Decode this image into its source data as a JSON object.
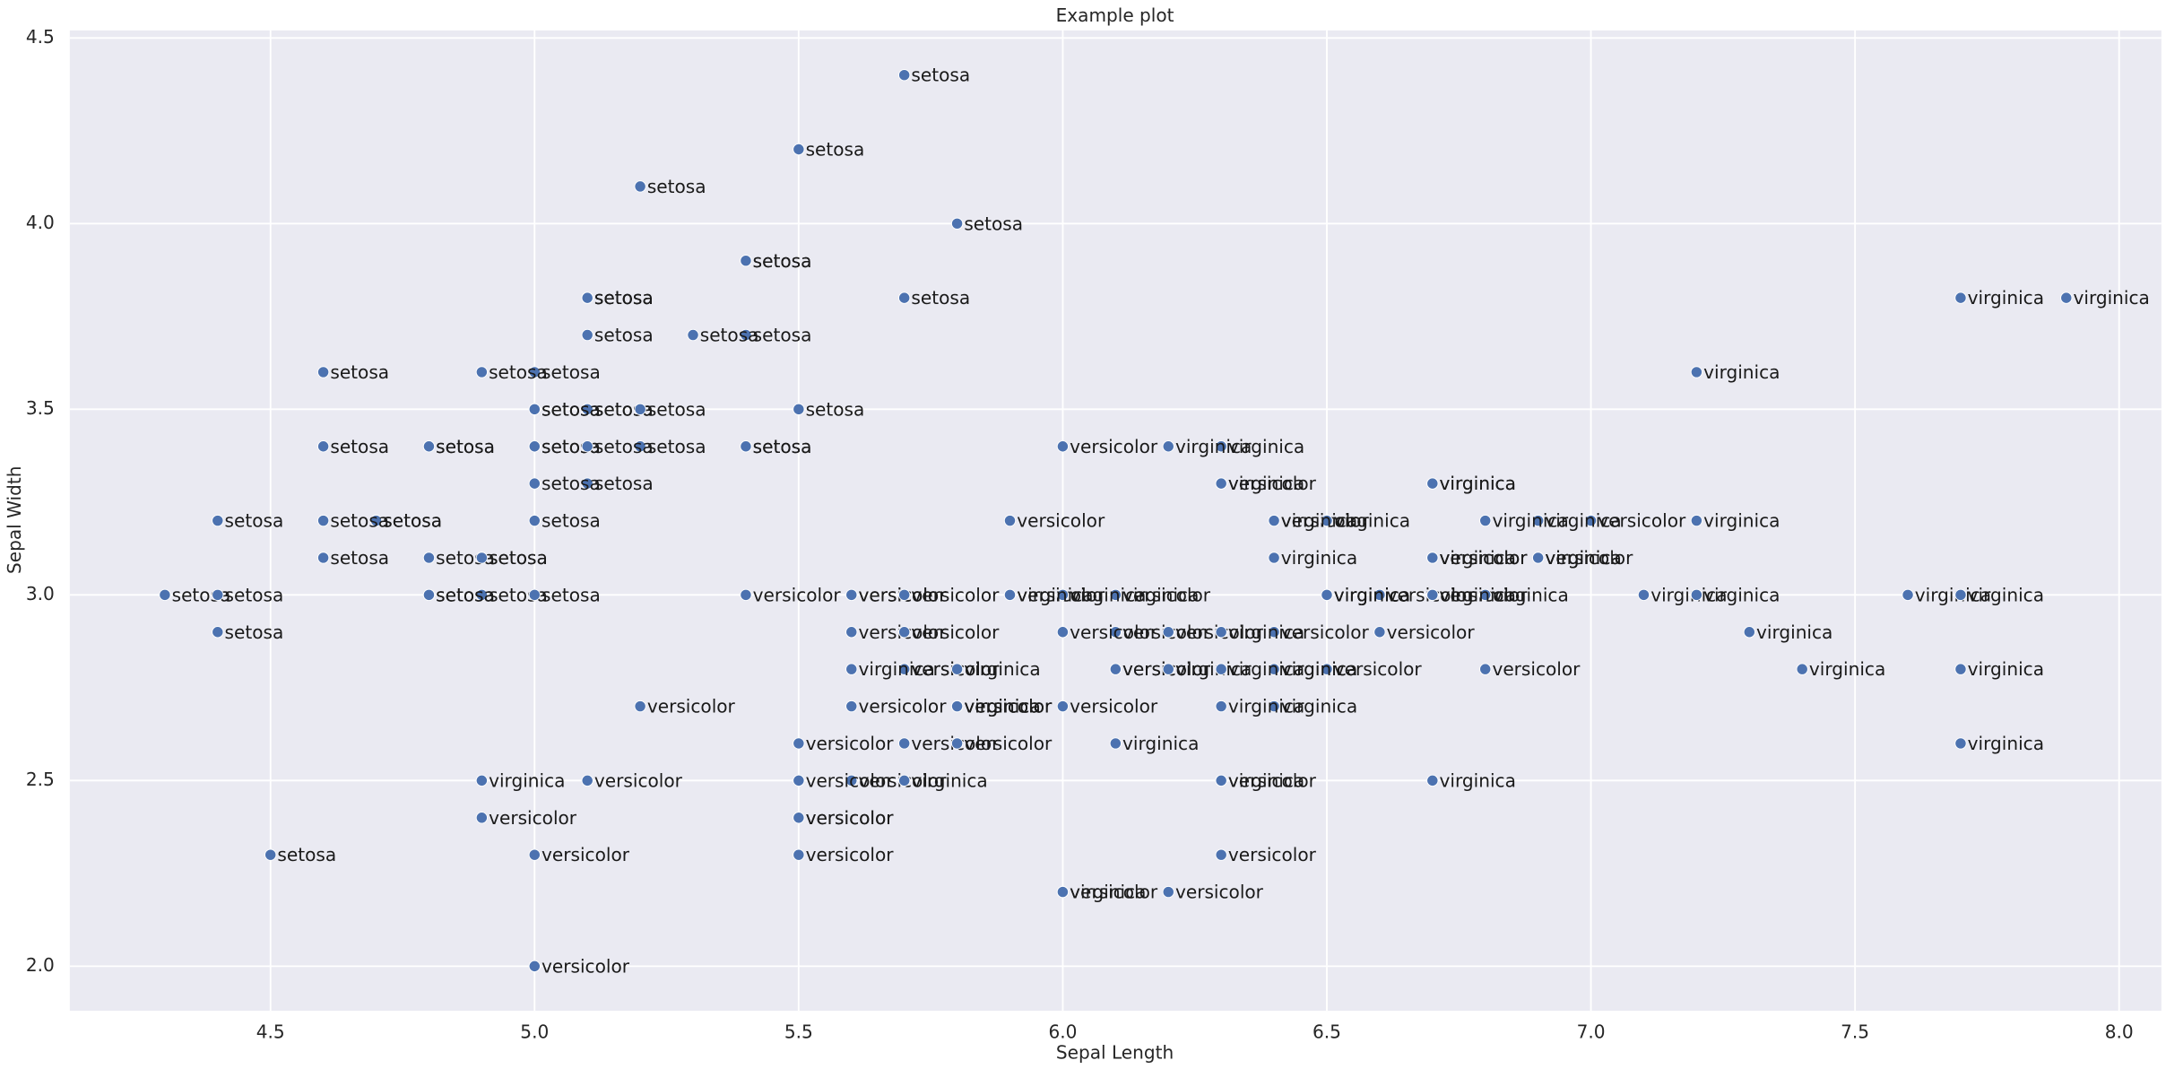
{
  "chart_data": {
    "type": "scatter",
    "title": "Example plot",
    "xlabel": "Sepal Length",
    "ylabel": "Sepal Width",
    "xlim": [
      4.12,
      8.08
    ],
    "ylim": [
      1.88,
      4.52
    ],
    "xticks": [
      4.5,
      {
        "value": 5,
        "label": "5.0"
      },
      5.5,
      {
        "value": 6,
        "label": "6.0"
      },
      6.5,
      {
        "value": 7,
        "label": "7.0"
      },
      7.5,
      {
        "value": 8,
        "label": "8.0"
      }
    ],
    "yticks": [
      {
        "value": 2,
        "label": "2.0"
      },
      2.5,
      {
        "value": 3,
        "label": "3.0"
      },
      3.5,
      {
        "value": 4,
        "label": "4.0"
      },
      4.5
    ],
    "grid": true,
    "series": [
      {
        "color": "#4c72b0",
        "x": [
          5.1,
          4.9,
          4.7,
          4.6,
          5.0,
          5.4,
          4.6,
          5.0,
          4.4,
          4.9,
          5.4,
          4.8,
          4.8,
          4.3,
          5.8,
          5.7,
          5.4,
          5.1,
          5.7,
          5.1,
          5.4,
          5.1,
          4.6,
          5.1,
          4.8,
          5.0,
          5.0,
          5.2,
          5.2,
          4.7,
          4.8,
          5.4,
          5.2,
          5.5,
          4.9,
          5.0,
          5.5,
          4.9,
          4.4,
          5.1,
          5.0,
          4.5,
          4.4,
          5.0,
          5.1,
          4.8,
          5.1,
          4.6,
          5.3,
          5.0,
          7.0,
          6.4,
          6.9,
          5.5,
          6.5,
          5.7,
          6.3,
          4.9,
          6.6,
          5.2,
          5.0,
          5.9,
          6.0,
          6.1,
          5.6,
          6.7,
          5.6,
          5.8,
          6.2,
          5.6,
          5.9,
          6.1,
          6.3,
          6.1,
          6.4,
          6.6,
          6.8,
          6.7,
          6.0,
          5.7,
          5.5,
          5.5,
          5.8,
          6.0,
          5.4,
          6.0,
          6.7,
          6.3,
          5.6,
          5.5,
          5.5,
          6.1,
          5.8,
          5.0,
          5.6,
          5.7,
          5.7,
          6.2,
          5.1,
          5.7,
          6.3,
          5.8,
          7.1,
          6.3,
          6.5,
          7.6,
          4.9,
          7.3,
          6.7,
          7.2,
          6.5,
          6.4,
          6.8,
          5.7,
          5.8,
          6.4,
          6.5,
          7.7,
          7.7,
          6.0,
          6.9,
          5.6,
          7.7,
          6.3,
          6.7,
          7.2,
          6.2,
          6.1,
          6.4,
          7.2,
          7.4,
          7.9,
          6.4,
          6.3,
          6.1,
          7.7,
          6.3,
          6.4,
          6.0,
          6.9,
          6.7,
          6.9,
          5.8,
          6.8,
          6.7,
          6.7,
          6.3,
          6.5,
          6.2,
          5.9
        ],
        "values": [
          3.5,
          3.0,
          3.2,
          3.1,
          3.6,
          3.9,
          3.4,
          3.4,
          2.9,
          3.1,
          3.7,
          3.4,
          3.0,
          3.0,
          4.0,
          4.4,
          3.9,
          3.5,
          3.8,
          3.8,
          3.4,
          3.7,
          3.6,
          3.3,
          3.4,
          3.0,
          3.4,
          3.5,
          3.4,
          3.2,
          3.1,
          3.4,
          4.1,
          4.2,
          3.1,
          3.2,
          3.5,
          3.6,
          3.0,
          3.4,
          3.5,
          2.3,
          3.2,
          3.5,
          3.8,
          3.0,
          3.8,
          3.2,
          3.7,
          3.3,
          3.2,
          3.2,
          3.1,
          2.3,
          2.8,
          2.8,
          3.3,
          2.4,
          2.9,
          2.7,
          2.0,
          3.0,
          2.2,
          2.9,
          2.9,
          3.1,
          3.0,
          2.7,
          2.2,
          2.5,
          3.2,
          2.8,
          2.5,
          2.8,
          2.9,
          3.0,
          2.8,
          3.0,
          2.9,
          2.6,
          2.4,
          2.4,
          2.7,
          2.7,
          3.0,
          3.4,
          3.1,
          2.3,
          3.0,
          2.5,
          2.6,
          3.0,
          2.6,
          2.3,
          2.7,
          3.0,
          2.9,
          2.9,
          2.5,
          2.8,
          3.3,
          2.7,
          3.0,
          2.9,
          3.0,
          3.0,
          2.5,
          2.9,
          2.5,
          3.6,
          3.2,
          2.7,
          3.0,
          2.5,
          2.8,
          3.2,
          3.0,
          3.8,
          2.6,
          2.2,
          3.2,
          2.8,
          2.8,
          2.7,
          3.3,
          3.2,
          2.8,
          3.0,
          2.8,
          3.0,
          2.8,
          3.8,
          2.8,
          2.8,
          2.6,
          3.0,
          3.4,
          3.1,
          3.0,
          3.1,
          3.1,
          3.1,
          2.7,
          3.2,
          3.3,
          3.0,
          2.5,
          3.0,
          3.4,
          3.0
        ],
        "labels": [
          "setosa",
          "setosa",
          "setosa",
          "setosa",
          "setosa",
          "setosa",
          "setosa",
          "setosa",
          "setosa",
          "setosa",
          "setosa",
          "setosa",
          "setosa",
          "setosa",
          "setosa",
          "setosa",
          "setosa",
          "setosa",
          "setosa",
          "setosa",
          "setosa",
          "setosa",
          "setosa",
          "setosa",
          "setosa",
          "setosa",
          "setosa",
          "setosa",
          "setosa",
          "setosa",
          "setosa",
          "setosa",
          "setosa",
          "setosa",
          "setosa",
          "setosa",
          "setosa",
          "setosa",
          "setosa",
          "setosa",
          "setosa",
          "setosa",
          "setosa",
          "setosa",
          "setosa",
          "setosa",
          "setosa",
          "setosa",
          "setosa",
          "setosa",
          "versicolor",
          "versicolor",
          "versicolor",
          "versicolor",
          "versicolor",
          "versicolor",
          "versicolor",
          "versicolor",
          "versicolor",
          "versicolor",
          "versicolor",
          "versicolor",
          "versicolor",
          "versicolor",
          "versicolor",
          "versicolor",
          "versicolor",
          "versicolor",
          "versicolor",
          "versicolor",
          "versicolor",
          "versicolor",
          "versicolor",
          "versicolor",
          "versicolor",
          "versicolor",
          "versicolor",
          "versicolor",
          "versicolor",
          "versicolor",
          "versicolor",
          "versicolor",
          "versicolor",
          "versicolor",
          "versicolor",
          "versicolor",
          "versicolor",
          "versicolor",
          "versicolor",
          "versicolor",
          "versicolor",
          "versicolor",
          "versicolor",
          "versicolor",
          "versicolor",
          "versicolor",
          "versicolor",
          "versicolor",
          "versicolor",
          "versicolor",
          "virginica",
          "virginica",
          "virginica",
          "virginica",
          "virginica",
          "virginica",
          "virginica",
          "virginica",
          "virginica",
          "virginica",
          "virginica",
          "virginica",
          "virginica",
          "virginica",
          "virginica",
          "virginica",
          "virginica",
          "virginica",
          "virginica",
          "virginica",
          "virginica",
          "virginica",
          "virginica",
          "virginica",
          "virginica",
          "virginica",
          "virginica",
          "virginica",
          "virginica",
          "virginica",
          "virginica",
          "virginica",
          "virginica",
          "virginica",
          "virginica",
          "virginica",
          "virginica",
          "virginica",
          "virginica",
          "virginica",
          "virginica",
          "virginica",
          "virginica",
          "virginica",
          "virginica",
          "virginica",
          "virginica",
          "virginica",
          "virginica",
          "virginica"
        ]
      }
    ]
  }
}
